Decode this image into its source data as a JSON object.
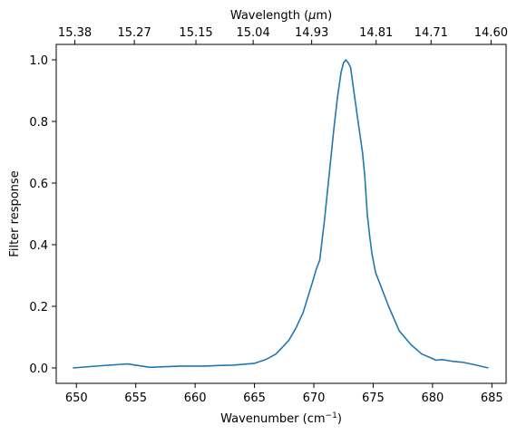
{
  "chart_data": {
    "type": "line",
    "title": "",
    "xlabel": "Wavenumber (cm",
    "xlabel_sup": "−1",
    "xlabel_suffix": ")",
    "ylabel": "Filter response",
    "top_xlabel": "Wavelength (",
    "top_xlabel_mu": "μ",
    "top_xlabel_suffix": "m)",
    "xlim": [
      648.3,
      686.2
    ],
    "ylim": [
      -0.05,
      1.05
    ],
    "xticks": [
      650,
      655,
      660,
      665,
      670,
      675,
      680,
      685
    ],
    "yticks": [
      0.0,
      0.2,
      0.4,
      0.6,
      0.8,
      1.0
    ],
    "ytick_labels": [
      "0.0",
      "0.2",
      "0.4",
      "0.6",
      "0.8",
      "1.0"
    ],
    "top_xticks": [
      {
        "wavenumber": 649.87,
        "label": "15.38"
      },
      {
        "wavenumber": 654.88,
        "label": "15.27"
      },
      {
        "wavenumber": 660.07,
        "label": "15.15"
      },
      {
        "wavenumber": 664.89,
        "label": "15.04"
      },
      {
        "wavenumber": 669.82,
        "label": "14.93"
      },
      {
        "wavenumber": 675.25,
        "label": "14.81"
      },
      {
        "wavenumber": 679.88,
        "label": "14.71"
      },
      {
        "wavenumber": 684.93,
        "label": "14.60"
      }
    ],
    "grid": false,
    "series": [
      {
        "color": "#1f77b4",
        "x": [
          649.7,
          652.0,
          654.3,
          656.2,
          658.8,
          660.8,
          662.0,
          663.2,
          665.0,
          666.0,
          666.8,
          667.3,
          667.9,
          668.5,
          669.1,
          669.5,
          669.9,
          670.2,
          670.5,
          670.9,
          671.3,
          671.7,
          672.0,
          672.3,
          672.5,
          672.7,
          672.9,
          673.1,
          673.4,
          673.8,
          674.1,
          674.3,
          674.5,
          674.7,
          674.9,
          675.2,
          675.6,
          675.9,
          676.3,
          677.2,
          678.2,
          679.1,
          679.9,
          680.3,
          680.8,
          681.6,
          682.6,
          683.6,
          684.7
        ],
        "y": [
          0.0,
          0.007,
          0.013,
          0.002,
          0.006,
          0.006,
          0.008,
          0.009,
          0.015,
          0.028,
          0.045,
          0.065,
          0.09,
          0.13,
          0.18,
          0.23,
          0.28,
          0.32,
          0.35,
          0.48,
          0.63,
          0.78,
          0.88,
          0.96,
          0.99,
          1.0,
          0.99,
          0.975,
          0.89,
          0.78,
          0.7,
          0.62,
          0.5,
          0.43,
          0.37,
          0.31,
          0.27,
          0.24,
          0.2,
          0.12,
          0.075,
          0.045,
          0.032,
          0.025,
          0.027,
          0.022,
          0.018,
          0.01,
          0.0
        ]
      }
    ]
  }
}
